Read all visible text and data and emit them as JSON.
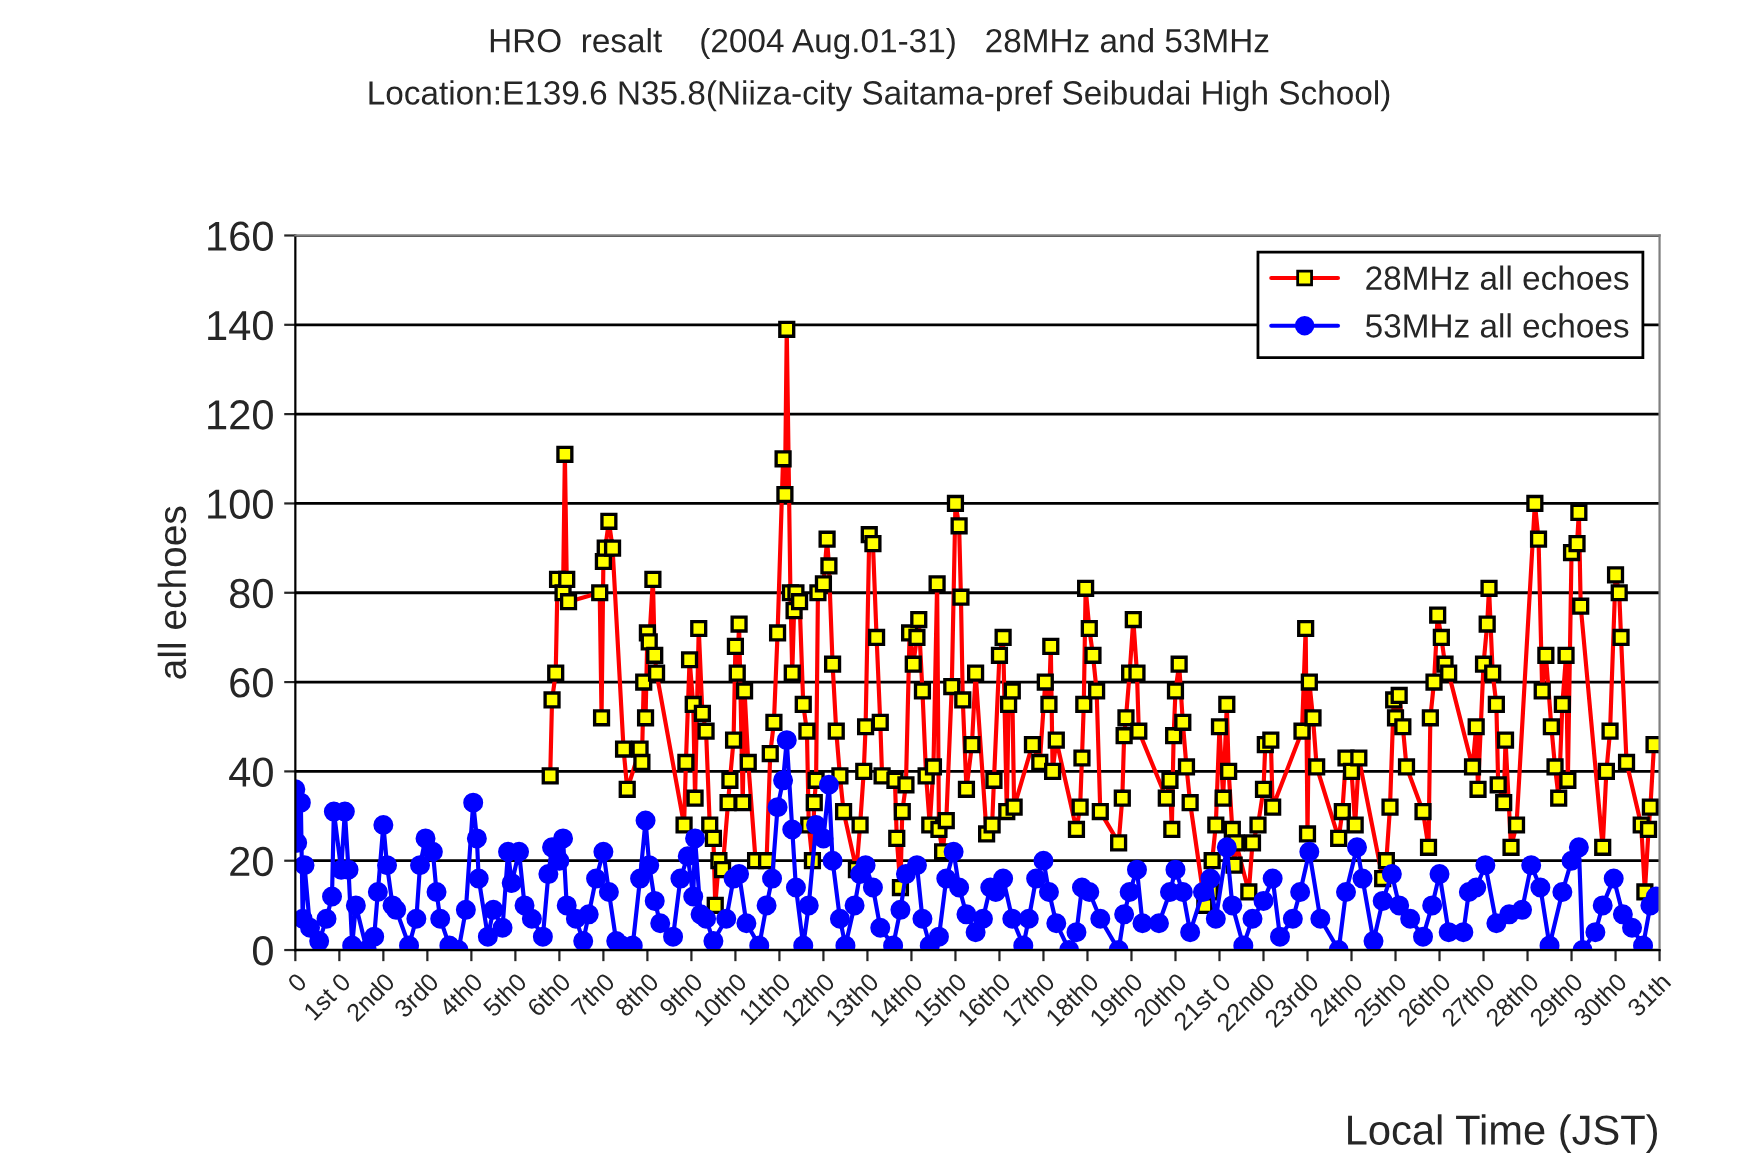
{
  "chart_data": {
    "type": "line",
    "title": "HRO  resalt    (2004 Aug.01-31)   28MHz and 53MHz",
    "subtitle": "Location:E139.6 N35.8(Niiza-city Saitama-pref Seibudai High School)",
    "xlabel": "Local Time (JST)",
    "ylabel": "all echoes",
    "xlim": [
      "2004-07-31T00:00",
      "2004-08-31T00:00"
    ],
    "ylim": [
      0,
      160
    ],
    "yticks": [
      0,
      20,
      40,
      60,
      80,
      100,
      120,
      140,
      160
    ],
    "xticks": [
      {
        "value": "2004-07-31",
        "label": "0"
      },
      {
        "value": "2004-08-01",
        "label": "1st 0"
      },
      {
        "value": "2004-08-02",
        "label": "2nd0"
      },
      {
        "value": "2004-08-03",
        "label": "3rd0"
      },
      {
        "value": "2004-08-04",
        "label": "4th0"
      },
      {
        "value": "2004-08-05",
        "label": "5th0"
      },
      {
        "value": "2004-08-06",
        "label": "6th0"
      },
      {
        "value": "2004-08-07",
        "label": "7th0"
      },
      {
        "value": "2004-08-08",
        "label": "8th0"
      },
      {
        "value": "2004-08-09",
        "label": "9th0"
      },
      {
        "value": "2004-08-10",
        "label": "10th0"
      },
      {
        "value": "2004-08-11",
        "label": "11th0"
      },
      {
        "value": "2004-08-12",
        "label": "12th0"
      },
      {
        "value": "2004-08-13",
        "label": "13th0"
      },
      {
        "value": "2004-08-14",
        "label": "14th0"
      },
      {
        "value": "2004-08-15",
        "label": "15th0"
      },
      {
        "value": "2004-08-16",
        "label": "16th0"
      },
      {
        "value": "2004-08-17",
        "label": "17th0"
      },
      {
        "value": "2004-08-18",
        "label": "18th0"
      },
      {
        "value": "2004-08-19",
        "label": "19th0"
      },
      {
        "value": "2004-08-20",
        "label": "20th0"
      },
      {
        "value": "2004-08-21",
        "label": "21st 0"
      },
      {
        "value": "2004-08-22",
        "label": "22nd0"
      },
      {
        "value": "2004-08-23",
        "label": "23rd0"
      },
      {
        "value": "2004-08-24",
        "label": "24th0"
      },
      {
        "value": "2004-08-25",
        "label": "25th0"
      },
      {
        "value": "2004-08-26",
        "label": "26th0"
      },
      {
        "value": "2004-08-27",
        "label": "27th0"
      },
      {
        "value": "2004-08-28",
        "label": "28th0"
      },
      {
        "value": "2004-08-29",
        "label": "29th0"
      },
      {
        "value": "2004-08-30",
        "label": "30th0"
      },
      {
        "value": "2004-08-31",
        "label": "31th"
      }
    ],
    "grid": "y",
    "legend": "top right",
    "line_style": "solid",
    "series": [
      {
        "name": "28MHz all echoes",
        "color": "#ff0000",
        "marker": "square",
        "x": [
          "2004-08-05T19:00",
          "2004-08-05T20:00",
          "2004-08-05T22:00",
          "2004-08-05T23:00",
          "2004-08-06T02:00",
          "2004-08-06T03:00",
          "2004-08-06T04:00",
          "2004-08-06T05:00",
          "2004-08-06T11:00",
          "2004-08-06T22:00",
          "2004-08-06T23:00",
          "2004-08-07T00:00",
          "2004-08-07T01:00",
          "2004-08-07T03:00",
          "2004-08-07T05:00",
          "2004-08-07T08:00",
          "2004-08-07T11:00",
          "2004-08-07T13:00",
          "2004-08-07T16:00",
          "2004-08-07T20:00",
          "2004-08-07T21:00",
          "2004-08-07T22:00",
          "2004-08-07T23:00",
          "2004-08-08T00:00",
          "2004-08-08T01:00",
          "2004-08-08T03:00",
          "2004-08-08T04:00",
          "2004-08-08T05:00",
          "2004-08-08T12:00",
          "2004-08-08T20:00",
          "2004-08-08T21:00",
          "2004-08-08T23:00",
          "2004-08-09T01:00",
          "2004-08-09T02:00",
          "2004-08-09T04:00",
          "2004-08-09T06:00",
          "2004-08-09T08:00",
          "2004-08-09T10:00",
          "2004-08-09T12:00",
          "2004-08-09T13:00",
          "2004-08-09T15:00",
          "2004-08-09T17:00",
          "2004-08-09T20:00",
          "2004-08-09T21:00",
          "2004-08-09T23:00",
          "2004-08-10T00:00",
          "2004-08-10T01:00",
          "2004-08-10T02:00",
          "2004-08-10T04:00",
          "2004-08-10T05:00",
          "2004-08-10T07:00",
          "2004-08-10T11:00",
          "2004-08-10T17:00",
          "2004-08-10T19:00",
          "2004-08-10T21:00",
          "2004-08-10T23:00",
          "2004-08-11T02:00",
          "2004-08-11T03:00",
          "2004-08-11T04:00",
          "2004-08-11T06:00",
          "2004-08-11T07:00",
          "2004-08-11T08:00",
          "2004-08-11T09:00",
          "2004-08-11T11:00",
          "2004-08-11T13:00",
          "2004-08-11T15:00",
          "2004-08-11T16:00",
          "2004-08-11T18:00",
          "2004-08-11T19:00",
          "2004-08-11T20:00",
          "2004-08-11T21:00",
          "2004-08-12T00:00",
          "2004-08-12T02:00",
          "2004-08-12T03:00",
          "2004-08-12T05:00",
          "2004-08-12T07:00",
          "2004-08-12T09:00",
          "2004-08-12T11:00",
          "2004-08-12T18:00",
          "2004-08-12T20:00",
          "2004-08-12T22:00",
          "2004-08-12T23:00",
          "2004-08-13T01:00",
          "2004-08-13T03:00",
          "2004-08-13T05:00",
          "2004-08-13T07:00",
          "2004-08-13T08:00",
          "2004-08-13T15:00",
          "2004-08-13T16:00",
          "2004-08-13T18:00",
          "2004-08-13T19:00",
          "2004-08-13T21:00",
          "2004-08-13T23:00",
          "2004-08-14T01:00",
          "2004-08-14T03:00",
          "2004-08-14T04:00",
          "2004-08-14T06:00",
          "2004-08-14T08:00",
          "2004-08-14T10:00",
          "2004-08-14T12:00",
          "2004-08-14T14:00",
          "2004-08-14T15:00",
          "2004-08-14T17:00",
          "2004-08-14T19:00",
          "2004-08-14T22:00",
          "2004-08-15T00:00",
          "2004-08-15T02:00",
          "2004-08-15T03:00",
          "2004-08-15T04:00",
          "2004-08-15T06:00",
          "2004-08-15T09:00",
          "2004-08-15T11:00",
          "2004-08-15T17:00",
          "2004-08-15T20:00",
          "2004-08-15T21:00",
          "2004-08-16T00:00",
          "2004-08-16T02:00",
          "2004-08-16T04:00",
          "2004-08-16T05:00",
          "2004-08-16T07:00",
          "2004-08-16T08:00",
          "2004-08-16T18:00",
          "2004-08-16T22:00",
          "2004-08-17T01:00",
          "2004-08-17T03:00",
          "2004-08-17T04:00",
          "2004-08-17T05:00",
          "2004-08-17T07:00",
          "2004-08-17T18:00",
          "2004-08-17T20:00",
          "2004-08-17T21:00",
          "2004-08-17T22:00",
          "2004-08-17T23:00",
          "2004-08-18T01:00",
          "2004-08-18T03:00",
          "2004-08-18T05:00",
          "2004-08-18T07:00",
          "2004-08-18T17:00",
          "2004-08-18T19:00",
          "2004-08-18T20:00",
          "2004-08-18T21:00",
          "2004-08-18T23:00",
          "2004-08-19T01:00",
          "2004-08-19T03:00",
          "2004-08-19T04:00",
          "2004-08-19T19:00",
          "2004-08-19T21:00",
          "2004-08-19T22:00",
          "2004-08-19T23:00",
          "2004-08-20T00:00",
          "2004-08-20T02:00",
          "2004-08-20T04:00",
          "2004-08-20T06:00",
          "2004-08-20T08:00",
          "2004-08-20T16:00",
          "2004-08-20T19:00",
          "2004-08-20T20:00",
          "2004-08-20T22:00",
          "2004-08-21T00:00",
          "2004-08-21T02:00",
          "2004-08-21T04:00",
          "2004-08-21T05:00",
          "2004-08-21T07:00",
          "2004-08-21T08:00",
          "2004-08-21T09:00",
          "2004-08-21T16:00",
          "2004-08-21T18:00",
          "2004-08-21T21:00",
          "2004-08-22T00:00",
          "2004-08-22T01:00",
          "2004-08-22T04:00",
          "2004-08-22T05:00",
          "2004-08-22T21:00",
          "2004-08-22T23:00",
          "2004-08-23T00:00",
          "2004-08-23T01:00",
          "2004-08-23T03:00",
          "2004-08-23T05:00",
          "2004-08-23T17:00",
          "2004-08-23T19:00",
          "2004-08-23T21:00",
          "2004-08-24T00:00",
          "2004-08-24T02:00",
          "2004-08-24T04:00",
          "2004-08-24T17:00",
          "2004-08-24T19:00",
          "2004-08-24T21:00",
          "2004-08-24T23:00",
          "2004-08-25T00:00",
          "2004-08-25T02:00",
          "2004-08-25T04:00",
          "2004-08-25T06:00",
          "2004-08-25T15:00",
          "2004-08-25T18:00",
          "2004-08-25T19:00",
          "2004-08-25T21:00",
          "2004-08-25T23:00",
          "2004-08-26T01:00",
          "2004-08-26T03:00",
          "2004-08-26T05:00",
          "2004-08-26T18:00",
          "2004-08-26T20:00",
          "2004-08-26T21:00",
          "2004-08-27T00:00",
          "2004-08-27T02:00",
          "2004-08-27T03:00",
          "2004-08-27T05:00",
          "2004-08-27T07:00",
          "2004-08-27T08:00",
          "2004-08-27T11:00",
          "2004-08-27T12:00",
          "2004-08-27T15:00",
          "2004-08-27T18:00",
          "2004-08-27T22:00",
          "2004-08-28T04:00",
          "2004-08-28T06:00",
          "2004-08-28T08:00",
          "2004-08-28T10:00",
          "2004-08-28T13:00",
          "2004-08-28T15:00",
          "2004-08-28T17:00",
          "2004-08-28T19:00",
          "2004-08-28T21:00",
          "2004-08-28T22:00",
          "2004-08-29T00:00",
          "2004-08-29T03:00",
          "2004-08-29T04:00",
          "2004-08-29T05:00",
          "2004-08-29T09:00",
          "2004-08-29T17:00",
          "2004-08-29T19:00",
          "2004-08-29T21:00",
          "2004-08-30T00:00",
          "2004-08-30T02:00",
          "2004-08-30T03:00",
          "2004-08-30T06:00",
          "2004-08-30T14:00",
          "2004-08-30T16:00",
          "2004-08-30T18:00",
          "2004-08-30T19:00",
          "2004-08-30T21:00"
        ],
        "values": [
          39,
          56,
          62,
          83,
          80,
          111,
          83,
          78,
          null,
          80,
          52,
          87,
          90,
          96,
          90,
          null,
          45,
          36,
          null,
          45,
          42,
          60,
          52,
          71,
          69,
          83,
          66,
          62,
          null,
          28,
          42,
          65,
          55,
          34,
          72,
          53,
          49,
          28,
          25,
          10,
          20,
          18,
          33,
          38,
          47,
          68,
          62,
          73,
          33,
          58,
          42,
          20,
          20,
          44,
          51,
          71,
          110,
          102,
          139,
          80,
          62,
          76,
          80,
          78,
          55,
          49,
          28,
          20,
          33,
          38,
          80,
          82,
          92,
          86,
          64,
          49,
          39,
          31,
          18,
          28,
          40,
          50,
          93,
          91,
          70,
          51,
          39,
          38,
          25,
          14,
          31,
          37,
          71,
          64,
          70,
          74,
          58,
          39,
          28,
          41,
          82,
          27,
          22,
          29,
          59,
          100,
          95,
          79,
          56,
          36,
          46,
          62,
          26,
          28,
          38,
          66,
          70,
          31,
          55,
          58,
          32,
          46,
          42,
          60,
          55,
          68,
          40,
          47,
          27,
          32,
          43,
          55,
          81,
          72,
          66,
          58,
          31,
          24,
          34,
          48,
          52,
          62,
          74,
          62,
          49,
          34,
          38,
          27,
          48,
          58,
          64,
          51,
          41,
          33,
          10,
          13,
          20,
          28,
          50,
          34,
          55,
          40,
          27,
          19,
          24,
          13,
          24,
          28,
          36,
          46,
          47,
          32,
          49,
          72,
          26,
          60,
          52,
          41,
          25,
          31,
          43,
          40,
          28,
          43,
          16,
          20,
          32,
          56,
          52,
          57,
          50,
          41,
          31,
          23,
          52,
          60,
          75,
          70,
          64,
          62,
          41,
          50,
          36,
          64,
          73,
          81,
          62,
          55,
          37,
          33,
          47,
          23,
          28,
          null,
          100,
          92,
          58,
          66,
          50,
          41,
          34,
          55,
          66,
          38,
          89,
          91,
          98,
          77,
          null,
          23,
          40,
          49,
          84,
          80,
          70,
          42,
          28,
          13,
          27,
          32,
          46
        ]
      },
      {
        "name": "53MHz all echoes",
        "color": "#0000ff",
        "marker": "circle",
        "x": [
          "2004-07-31T00:00",
          "2004-07-31T01:00",
          "2004-07-31T03:00",
          "2004-07-31T04:00",
          "2004-07-31T05:00",
          "2004-07-31T08:00",
          "2004-07-31T13:00",
          "2004-07-31T17:00",
          "2004-07-31T20:00",
          "2004-07-31T21:00",
          "2004-08-01T01:00",
          "2004-08-01T03:00",
          "2004-08-01T05:00",
          "2004-08-01T07:00",
          "2004-08-01T09:00",
          "2004-08-01T15:00",
          "2004-08-01T19:00",
          "2004-08-01T21:00",
          "2004-08-02T00:00",
          "2004-08-02T02:00",
          "2004-08-02T05:00",
          "2004-08-02T07:00",
          "2004-08-02T14:00",
          "2004-08-02T18:00",
          "2004-08-02T20:00",
          "2004-08-02T23:00",
          "2004-08-03T03:00",
          "2004-08-03T05:00",
          "2004-08-03T07:00",
          "2004-08-03T12:00",
          "2004-08-03T17:00",
          "2004-08-03T21:00",
          "2004-08-04T01:00",
          "2004-08-04T03:00",
          "2004-08-04T04:00",
          "2004-08-04T09:00",
          "2004-08-04T12:00",
          "2004-08-04T17:00",
          "2004-08-04T20:00",
          "2004-08-04T22:00",
          "2004-08-05T02:00",
          "2004-08-05T05:00",
          "2004-08-05T09:00",
          "2004-08-05T15:00",
          "2004-08-05T18:00",
          "2004-08-05T20:00",
          "2004-08-06T00:00",
          "2004-08-06T02:00",
          "2004-08-06T04:00",
          "2004-08-06T09:00",
          "2004-08-06T13:00",
          "2004-08-06T16:00",
          "2004-08-06T20:00",
          "2004-08-07T00:00",
          "2004-08-07T03:00",
          "2004-08-07T07:00",
          "2004-08-07T10:00",
          "2004-08-07T16:00",
          "2004-08-07T20:00",
          "2004-08-07T23:00",
          "2004-08-08T01:00",
          "2004-08-08T04:00",
          "2004-08-08T07:00",
          "2004-08-08T14:00",
          "2004-08-08T18:00",
          "2004-08-08T22:00",
          "2004-08-09T01:00",
          "2004-08-09T02:00",
          "2004-08-09T05:00",
          "2004-08-09T08:00",
          "2004-08-09T12:00",
          "2004-08-09T19:00",
          "2004-08-09T23:00",
          "2004-08-10T02:00",
          "2004-08-10T06:00",
          "2004-08-10T13:00",
          "2004-08-10T17:00",
          "2004-08-10T20:00",
          "2004-08-10T23:00",
          "2004-08-11T02:00",
          "2004-08-11T04:00",
          "2004-08-11T07:00",
          "2004-08-11T09:00",
          "2004-08-11T13:00",
          "2004-08-11T16:00",
          "2004-08-11T20:00",
          "2004-08-12T00:00",
          "2004-08-12T03:00",
          "2004-08-12T05:00",
          "2004-08-12T09:00",
          "2004-08-12T12:00",
          "2004-08-12T17:00",
          "2004-08-12T20:00",
          "2004-08-12T23:00",
          "2004-08-13T03:00",
          "2004-08-13T07:00",
          "2004-08-13T14:00",
          "2004-08-13T18:00",
          "2004-08-13T21:00",
          "2004-08-14T03:00",
          "2004-08-14T06:00",
          "2004-08-14T10:00",
          "2004-08-14T15:00",
          "2004-08-14T19:00",
          "2004-08-14T23:00",
          "2004-08-15T02:00",
          "2004-08-15T06:00",
          "2004-08-15T11:00",
          "2004-08-15T15:00",
          "2004-08-15T19:00",
          "2004-08-15T22:00",
          "2004-08-16T02:00",
          "2004-08-16T07:00",
          "2004-08-16T13:00",
          "2004-08-16T16:00",
          "2004-08-16T20:00",
          "2004-08-17T00:00",
          "2004-08-17T03:00",
          "2004-08-17T07:00",
          "2004-08-17T14:00",
          "2004-08-17T18:00",
          "2004-08-17T21:00",
          "2004-08-18T01:00",
          "2004-08-18T07:00",
          "2004-08-18T17:00",
          "2004-08-18T20:00",
          "2004-08-18T23:00",
          "2004-08-19T03:00",
          "2004-08-19T06:00",
          "2004-08-19T15:00",
          "2004-08-19T21:00",
          "2004-08-20T00:00",
          "2004-08-20T04:00",
          "2004-08-20T08:00",
          "2004-08-20T15:00",
          "2004-08-20T19:00",
          "2004-08-20T22:00",
          "2004-08-21T04:00",
          "2004-08-21T07:00",
          "2004-08-21T13:00",
          "2004-08-21T18:00",
          "2004-08-22T00:00",
          "2004-08-22T05:00",
          "2004-08-22T09:00",
          "2004-08-22T16:00",
          "2004-08-22T20:00",
          "2004-08-23T01:00",
          "2004-08-23T07:00",
          "2004-08-23T17:00",
          "2004-08-23T21:00",
          "2004-08-24T03:00",
          "2004-08-24T06:00",
          "2004-08-24T12:00",
          "2004-08-24T17:00",
          "2004-08-24T22:00",
          "2004-08-25T02:00",
          "2004-08-25T08:00",
          "2004-08-25T15:00",
          "2004-08-25T20:00",
          "2004-08-26T00:00",
          "2004-08-26T05:00",
          "2004-08-26T13:00",
          "2004-08-26T16:00",
          "2004-08-26T20:00",
          "2004-08-27T01:00",
          "2004-08-27T07:00",
          "2004-08-27T14:00",
          "2004-08-27T21:00",
          "2004-08-28T02:00",
          "2004-08-28T07:00",
          "2004-08-28T12:00",
          "2004-08-28T19:00",
          "2004-08-29T00:00",
          "2004-08-29T04:00",
          "2004-08-29T06:00",
          "2004-08-29T13:00",
          "2004-08-29T17:00",
          "2004-08-29T23:00",
          "2004-08-30T04:00",
          "2004-08-30T09:00",
          "2004-08-30T15:00",
          "2004-08-30T19:00",
          "2004-08-30T22:00"
        ],
        "values": [
          36,
          24,
          33,
          7,
          19,
          5,
          2,
          7,
          12,
          31,
          18,
          31,
          18,
          1,
          10,
          0,
          3,
          13,
          28,
          19,
          10,
          9,
          1,
          7,
          19,
          25,
          22,
          13,
          7,
          1,
          0,
          9,
          33,
          25,
          16,
          3,
          9,
          5,
          22,
          15,
          22,
          10,
          7,
          3,
          17,
          23,
          20,
          25,
          10,
          7,
          2,
          8,
          16,
          22,
          13,
          2,
          1,
          1,
          16,
          29,
          19,
          11,
          6,
          3,
          16,
          21,
          12,
          25,
          8,
          7,
          2,
          7,
          16,
          17,
          6,
          1,
          10,
          16,
          32,
          38,
          47,
          27,
          14,
          1,
          10,
          28,
          25,
          37,
          20,
          7,
          1,
          10,
          17,
          19,
          14,
          5,
          1,
          9,
          17,
          19,
          7,
          1,
          3,
          16,
          22,
          14,
          8,
          4,
          7,
          14,
          13,
          16,
          7,
          1,
          7,
          16,
          20,
          13,
          6,
          0,
          4,
          14,
          13,
          7,
          0,
          8,
          13,
          18,
          6,
          6,
          13,
          18,
          13,
          4,
          13,
          16,
          7,
          23,
          10,
          1,
          7,
          11,
          16,
          3,
          7,
          13,
          22,
          7,
          0,
          13,
          23,
          16,
          2,
          11,
          17,
          10,
          7,
          3,
          10,
          17,
          4,
          4,
          13,
          14,
          19,
          6,
          8,
          9,
          19,
          14,
          1,
          13,
          20,
          23,
          0,
          4,
          10,
          16,
          8,
          5,
          1,
          10,
          12
        ]
      }
    ]
  }
}
